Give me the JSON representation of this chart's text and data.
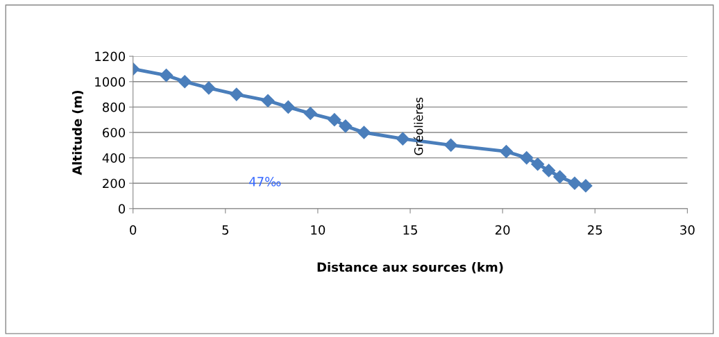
{
  "chart_data": {
    "type": "line",
    "xlabel": "Distance aux sources (km)",
    "ylabel": "Altitude (m)",
    "x": [
      0,
      1.8,
      2.8,
      4.1,
      5.6,
      7.3,
      8.4,
      9.6,
      10.9,
      11.5,
      12.5,
      14.6,
      17.2,
      20.2,
      21.3,
      21.9,
      22.5,
      23.1,
      23.9,
      24.5
    ],
    "series": [
      {
        "color": "#4a7ebb",
        "values": [
          1100,
          1050,
          1000,
          950,
          900,
          850,
          800,
          750,
          700,
          650,
          600,
          550,
          500,
          450,
          400,
          350,
          300,
          250,
          200,
          180
        ]
      }
    ],
    "xlim": [
      0,
      30
    ],
    "xticks": [
      0,
      5,
      10,
      15,
      20,
      25,
      30
    ],
    "ylim": [
      0,
      1200
    ],
    "yticks": [
      0,
      200,
      400,
      600,
      800,
      1000,
      1200
    ],
    "grid": "y",
    "marker": "diamond",
    "line_style": "solid",
    "legend": false,
    "annotations": [
      "Gréolières",
      "47‰"
    ]
  }
}
